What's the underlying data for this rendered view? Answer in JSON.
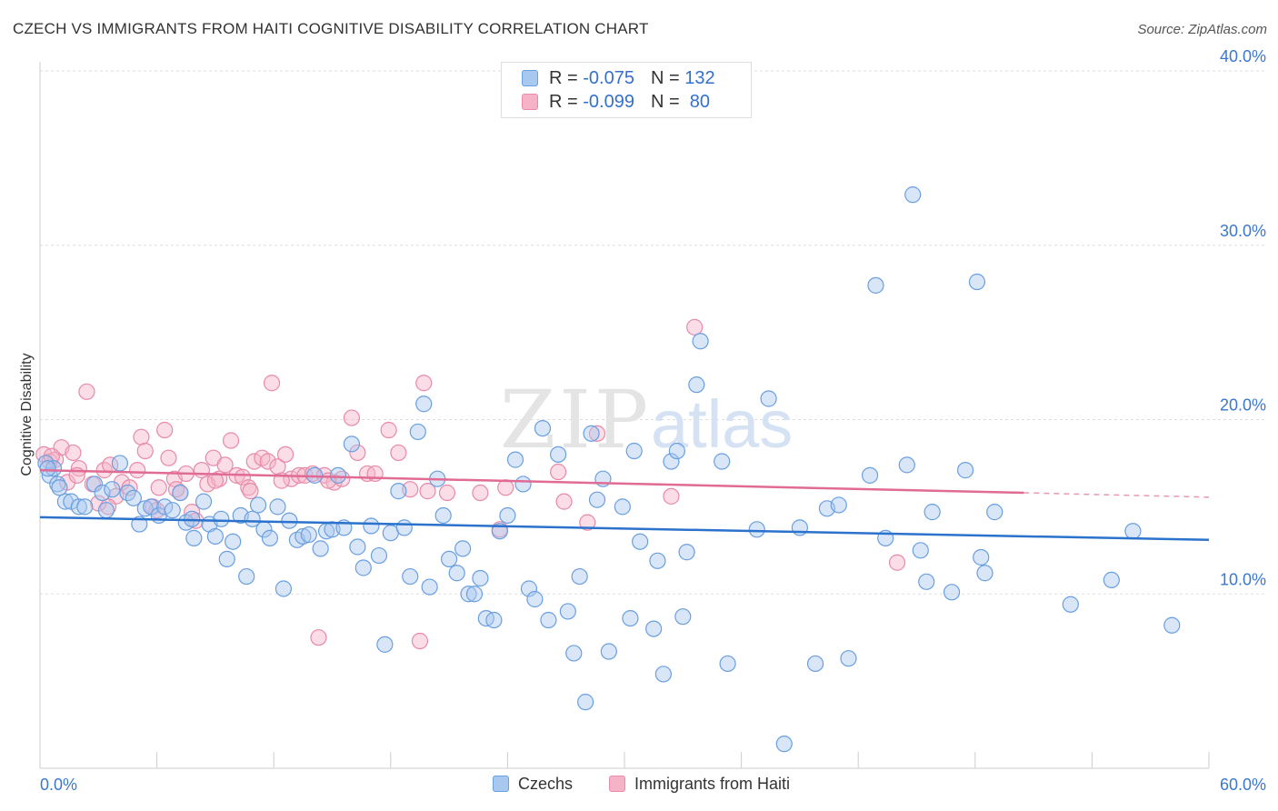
{
  "title": "CZECH VS IMMIGRANTS FROM HAITI COGNITIVE DISABILITY CORRELATION CHART",
  "source": "Source: ZipAtlas.com",
  "watermark": {
    "zip": "ZIP",
    "atlas": "atlas"
  },
  "legend": {
    "rows": [
      {
        "r_label": "R = ",
        "r_value": "-0.075",
        "n_label": "N = ",
        "n_value": "132"
      },
      {
        "r_label": "R = ",
        "r_value": "-0.099",
        "n_label": "N = ",
        "n_value": " 80"
      }
    ]
  },
  "bottom_legend": [
    "Czechs",
    "Immigrants from Haiti"
  ],
  "colors": {
    "blue_fill": "#a9c8f0",
    "blue_stroke": "#6a9fe0",
    "blue_line": "#2a72cc",
    "pink_fill": "#f5b3c8",
    "pink_stroke": "#e88aa8",
    "pink_line": "#e06b94",
    "tick_label": "#3a78d0",
    "grid": "#dddddd"
  },
  "chart_data": {
    "type": "scatter",
    "title": "CZECH VS IMMIGRANTS FROM HAITI COGNITIVE DISABILITY CORRELATION CHART",
    "xlabel": "",
    "ylabel": "Cognitive Disability",
    "xlim": [
      0,
      60
    ],
    "ylim": [
      0,
      40
    ],
    "x_tick_labels": [
      "0.0%",
      "60.0%"
    ],
    "y_ticks": [
      10,
      20,
      30,
      40
    ],
    "y_tick_labels": [
      "10.0%",
      "20.0%",
      "30.0%",
      "40.0%"
    ],
    "grid": true,
    "legend_position": "top-center",
    "series": [
      {
        "name": "Czechs",
        "trend": [
          [
            0,
            14.4
          ],
          [
            60,
            13.1
          ]
        ],
        "points": [
          [
            0.3,
            17.5
          ],
          [
            0.5,
            16.8
          ],
          [
            0.7,
            17.2
          ],
          [
            0.9,
            16.3
          ],
          [
            1.3,
            15.3
          ],
          [
            1.6,
            15.3
          ],
          [
            2.0,
            15.0
          ],
          [
            2.3,
            15.0
          ],
          [
            2.8,
            16.3
          ],
          [
            3.2,
            15.8
          ],
          [
            3.4,
            14.8
          ],
          [
            3.7,
            16.0
          ],
          [
            4.1,
            17.5
          ],
          [
            4.5,
            15.8
          ],
          [
            4.8,
            15.5
          ],
          [
            5.1,
            14.0
          ],
          [
            5.4,
            14.9
          ],
          [
            5.7,
            15.0
          ],
          [
            6.1,
            14.5
          ],
          [
            6.4,
            15.0
          ],
          [
            6.8,
            14.8
          ],
          [
            7.2,
            15.8
          ],
          [
            7.5,
            14.1
          ],
          [
            7.8,
            14.3
          ],
          [
            7.9,
            13.2
          ],
          [
            8.4,
            15.3
          ],
          [
            8.7,
            14.0
          ],
          [
            9.0,
            13.3
          ],
          [
            9.3,
            14.3
          ],
          [
            9.6,
            12.0
          ],
          [
            9.9,
            13.0
          ],
          [
            10.3,
            14.5
          ],
          [
            10.6,
            11.0
          ],
          [
            10.9,
            14.3
          ],
          [
            11.2,
            15.1
          ],
          [
            11.5,
            13.7
          ],
          [
            11.8,
            13.2
          ],
          [
            12.2,
            15.0
          ],
          [
            12.5,
            10.3
          ],
          [
            12.8,
            14.2
          ],
          [
            13.2,
            13.1
          ],
          [
            13.5,
            13.3
          ],
          [
            13.8,
            13.4
          ],
          [
            14.1,
            16.8
          ],
          [
            14.4,
            12.6
          ],
          [
            14.7,
            13.6
          ],
          [
            15.0,
            13.7
          ],
          [
            15.3,
            16.8
          ],
          [
            15.6,
            13.8
          ],
          [
            16.0,
            18.6
          ],
          [
            16.3,
            12.7
          ],
          [
            16.6,
            11.5
          ],
          [
            17.0,
            13.9
          ],
          [
            17.4,
            12.2
          ],
          [
            17.7,
            7.1
          ],
          [
            18.0,
            13.5
          ],
          [
            18.4,
            15.9
          ],
          [
            18.7,
            13.8
          ],
          [
            19.0,
            11.0
          ],
          [
            19.4,
            19.3
          ],
          [
            19.7,
            20.9
          ],
          [
            20.0,
            10.4
          ],
          [
            20.4,
            16.6
          ],
          [
            20.7,
            14.5
          ],
          [
            21.0,
            12.0
          ],
          [
            21.4,
            11.2
          ],
          [
            21.7,
            12.6
          ],
          [
            22.0,
            10.0
          ],
          [
            22.3,
            10.0
          ],
          [
            22.6,
            10.9
          ],
          [
            22.9,
            8.6
          ],
          [
            23.3,
            8.5
          ],
          [
            23.6,
            13.6
          ],
          [
            24.0,
            14.5
          ],
          [
            24.4,
            17.7
          ],
          [
            24.8,
            16.3
          ],
          [
            25.1,
            10.3
          ],
          [
            25.4,
            9.7
          ],
          [
            25.8,
            19.5
          ],
          [
            26.1,
            8.5
          ],
          [
            26.6,
            18.0
          ],
          [
            27.1,
            9.0
          ],
          [
            27.4,
            6.6
          ],
          [
            27.7,
            11.0
          ],
          [
            28.0,
            3.8
          ],
          [
            28.3,
            19.2
          ],
          [
            28.6,
            15.4
          ],
          [
            28.9,
            16.6
          ],
          [
            29.2,
            6.7
          ],
          [
            29.9,
            15.0
          ],
          [
            30.3,
            8.6
          ],
          [
            30.5,
            18.2
          ],
          [
            30.8,
            13.0
          ],
          [
            31.5,
            8.0
          ],
          [
            31.7,
            11.9
          ],
          [
            32.0,
            5.4
          ],
          [
            32.4,
            17.6
          ],
          [
            32.7,
            18.2
          ],
          [
            33.0,
            8.7
          ],
          [
            33.2,
            12.4
          ],
          [
            33.7,
            22.0
          ],
          [
            33.9,
            24.5
          ],
          [
            35.0,
            17.6
          ],
          [
            35.3,
            6.0
          ],
          [
            36.8,
            13.7
          ],
          [
            37.4,
            21.2
          ],
          [
            38.2,
            1.4
          ],
          [
            39.0,
            13.8
          ],
          [
            39.8,
            6.0
          ],
          [
            40.4,
            14.9
          ],
          [
            41.0,
            15.1
          ],
          [
            41.5,
            6.3
          ],
          [
            42.6,
            16.8
          ],
          [
            42.9,
            27.7
          ],
          [
            43.4,
            13.2
          ],
          [
            44.5,
            17.4
          ],
          [
            44.8,
            32.9
          ],
          [
            45.2,
            12.5
          ],
          [
            45.5,
            10.7
          ],
          [
            45.8,
            14.7
          ],
          [
            46.8,
            10.1
          ],
          [
            47.5,
            17.1
          ],
          [
            48.1,
            27.9
          ],
          [
            48.3,
            12.1
          ],
          [
            48.5,
            11.2
          ],
          [
            49.0,
            14.7
          ],
          [
            52.9,
            9.4
          ],
          [
            55.0,
            10.8
          ],
          [
            56.1,
            13.6
          ],
          [
            58.1,
            8.2
          ],
          [
            0.4,
            17.2
          ],
          [
            1.0,
            16.1
          ]
        ]
      },
      {
        "name": "Immigrants from Haiti",
        "trend": [
          [
            0,
            17.1
          ],
          [
            50.5,
            15.8
          ]
        ],
        "trend_dashed": [
          [
            50.5,
            15.8
          ],
          [
            60,
            15.55
          ]
        ],
        "points": [
          [
            0.2,
            18.0
          ],
          [
            0.5,
            17.6
          ],
          [
            0.8,
            17.7
          ],
          [
            1.1,
            18.4
          ],
          [
            1.4,
            16.4
          ],
          [
            1.7,
            18.1
          ],
          [
            2.0,
            17.2
          ],
          [
            2.4,
            21.6
          ],
          [
            2.7,
            16.3
          ],
          [
            3.0,
            15.2
          ],
          [
            3.3,
            17.1
          ],
          [
            3.6,
            17.4
          ],
          [
            3.9,
            15.6
          ],
          [
            4.2,
            16.4
          ],
          [
            4.6,
            16.1
          ],
          [
            5.0,
            17.1
          ],
          [
            5.2,
            19.0
          ],
          [
            5.4,
            18.2
          ],
          [
            5.8,
            15.0
          ],
          [
            6.1,
            16.1
          ],
          [
            6.4,
            19.4
          ],
          [
            6.6,
            17.8
          ],
          [
            6.9,
            16.6
          ],
          [
            7.2,
            15.8
          ],
          [
            7.5,
            16.9
          ],
          [
            7.8,
            14.7
          ],
          [
            8.0,
            14.2
          ],
          [
            8.3,
            17.1
          ],
          [
            8.6,
            16.3
          ],
          [
            8.9,
            17.8
          ],
          [
            9.2,
            16.6
          ],
          [
            9.5,
            17.4
          ],
          [
            9.8,
            18.8
          ],
          [
            10.1,
            16.8
          ],
          [
            10.4,
            16.7
          ],
          [
            10.7,
            16.1
          ],
          [
            11.0,
            17.6
          ],
          [
            11.4,
            17.8
          ],
          [
            11.7,
            17.6
          ],
          [
            11.9,
            22.1
          ],
          [
            12.2,
            17.3
          ],
          [
            12.6,
            18.0
          ],
          [
            12.9,
            16.6
          ],
          [
            13.3,
            16.8
          ],
          [
            13.6,
            16.8
          ],
          [
            14.0,
            16.9
          ],
          [
            14.3,
            7.5
          ],
          [
            14.6,
            16.8
          ],
          [
            15.1,
            16.4
          ],
          [
            15.5,
            16.6
          ],
          [
            16.0,
            20.1
          ],
          [
            16.3,
            18.1
          ],
          [
            16.8,
            16.9
          ],
          [
            17.9,
            19.4
          ],
          [
            18.4,
            18.1
          ],
          [
            19.0,
            16.0
          ],
          [
            19.5,
            7.3
          ],
          [
            19.7,
            22.1
          ],
          [
            19.9,
            15.9
          ],
          [
            20.9,
            15.8
          ],
          [
            22.6,
            15.8
          ],
          [
            23.6,
            13.7
          ],
          [
            23.9,
            16.1
          ],
          [
            26.6,
            17.0
          ],
          [
            26.9,
            15.3
          ],
          [
            28.1,
            14.1
          ],
          [
            28.6,
            19.2
          ],
          [
            32.4,
            15.6
          ],
          [
            33.6,
            25.3
          ],
          [
            44.0,
            11.8
          ],
          [
            3.5,
            15.0
          ],
          [
            6.0,
            14.8
          ],
          [
            7.0,
            16.0
          ],
          [
            9.0,
            16.5
          ],
          [
            10.8,
            15.9
          ],
          [
            12.4,
            16.5
          ],
          [
            14.8,
            16.5
          ],
          [
            17.2,
            16.9
          ],
          [
            0.6,
            17.9
          ],
          [
            1.9,
            16.8
          ]
        ]
      }
    ]
  }
}
